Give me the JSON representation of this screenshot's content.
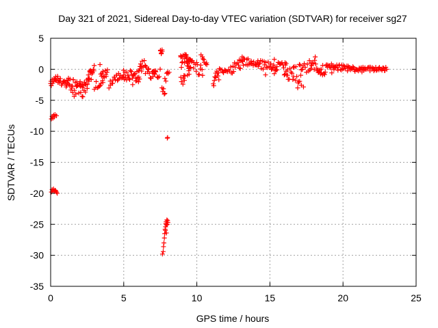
{
  "chart_data": {
    "type": "scatter",
    "title": "Day 321 of 2021, Sidereal Day-to-day VTEC variation (SDTVAR) for receiver sg27",
    "xlabel": "GPS time / hours",
    "ylabel": "SDTVAR / TECUs",
    "xlim": [
      0,
      25
    ],
    "ylim": [
      -35,
      5
    ],
    "x_ticks": [
      0,
      5,
      10,
      15,
      20,
      25
    ],
    "y_ticks": [
      5,
      0,
      -5,
      -10,
      -15,
      -20,
      -25,
      -30,
      -35
    ],
    "grid": true,
    "marker": "plus",
    "marker_color": "#ff0000",
    "segments": [
      {
        "x0": 0.0,
        "x1": 0.5,
        "y0": -2.2,
        "y1": -1.5,
        "jitter": 0.5,
        "n": 12
      },
      {
        "x0": 0.5,
        "x1": 1.0,
        "y0": -2.0,
        "y1": -2.5,
        "jitter": 0.7,
        "n": 12
      },
      {
        "x0": 1.0,
        "x1": 1.5,
        "y0": -2.0,
        "y1": -2.8,
        "jitter": 1.0,
        "n": 14
      },
      {
        "x0": 1.5,
        "x1": 2.2,
        "y0": -3.0,
        "y1": -3.5,
        "jitter": 1.4,
        "n": 22
      },
      {
        "x0": 2.2,
        "x1": 2.8,
        "y0": -3.5,
        "y1": -0.5,
        "jitter": 1.2,
        "n": 18
      },
      {
        "x0": 2.6,
        "x1": 3.0,
        "y0": -1.0,
        "y1": 0.3,
        "jitter": 0.6,
        "n": 10
      },
      {
        "x0": 3.0,
        "x1": 3.6,
        "y0": -2.8,
        "y1": -1.8,
        "jitter": 0.6,
        "n": 10
      },
      {
        "x0": 3.4,
        "x1": 3.9,
        "y0": -0.2,
        "y1": -0.5,
        "jitter": 1.0,
        "n": 12
      },
      {
        "x0": 4.0,
        "x1": 4.5,
        "y0": -2.5,
        "y1": -1.5,
        "jitter": 0.6,
        "n": 10
      },
      {
        "x0": 4.5,
        "x1": 5.0,
        "y0": -1.2,
        "y1": -0.5,
        "jitter": 0.8,
        "n": 10
      },
      {
        "x0": 5.0,
        "x1": 5.6,
        "y0": -0.8,
        "y1": -1.2,
        "jitter": 1.0,
        "n": 14
      },
      {
        "x0": 5.6,
        "x1": 6.2,
        "y0": -1.8,
        "y1": -0.5,
        "jitter": 1.2,
        "n": 16
      },
      {
        "x0": 6.0,
        "x1": 6.5,
        "y0": 0.3,
        "y1": 1.0,
        "jitter": 0.7,
        "n": 10
      },
      {
        "x0": 6.5,
        "x1": 7.2,
        "y0": -0.3,
        "y1": -1.0,
        "jitter": 0.8,
        "n": 14
      },
      {
        "x0": 7.0,
        "x1": 7.5,
        "y0": -1.2,
        "y1": -0.5,
        "jitter": 0.7,
        "n": 8
      },
      {
        "x0": 7.5,
        "x1": 7.65,
        "y0": 3.3,
        "y1": 2.5,
        "jitter": 0.5,
        "n": 6
      },
      {
        "x0": 7.6,
        "x1": 7.8,
        "y0": -3.2,
        "y1": -4.0,
        "jitter": 0.5,
        "n": 5
      },
      {
        "x0": 7.8,
        "x1": 8.1,
        "y0": -2.0,
        "y1": -0.3,
        "jitter": 0.7,
        "n": 6
      },
      {
        "x0": 8.9,
        "x1": 9.6,
        "y0": 0.5,
        "y1": 0.3,
        "jitter": 2.0,
        "n": 30
      },
      {
        "x0": 9.3,
        "x1": 10.4,
        "y0": 0.8,
        "y1": -0.3,
        "jitter": 1.1,
        "n": 20
      },
      {
        "x0": 10.3,
        "x1": 10.7,
        "y0": 2.2,
        "y1": 0.8,
        "jitter": 0.5,
        "n": 8
      },
      {
        "x0": 11.1,
        "x1": 11.5,
        "y0": -1.8,
        "y1": -1.3,
        "jitter": 1.2,
        "n": 10
      },
      {
        "x0": 11.5,
        "x1": 12.5,
        "y0": -0.2,
        "y1": 0.0,
        "jitter": 0.6,
        "n": 16
      },
      {
        "x0": 12.5,
        "x1": 13.0,
        "y0": 0.8,
        "y1": 0.5,
        "jitter": 0.5,
        "n": 8
      },
      {
        "x0": 13.0,
        "x1": 14.2,
        "y0": 1.3,
        "y1": 0.8,
        "jitter": 0.6,
        "n": 22
      },
      {
        "x0": 14.2,
        "x1": 15.5,
        "y0": 0.8,
        "y1": 0.3,
        "jitter": 0.7,
        "n": 24
      },
      {
        "x0": 15.5,
        "x1": 16.2,
        "y0": 1.0,
        "y1": 0.3,
        "jitter": 0.6,
        "n": 12
      },
      {
        "x0": 16.0,
        "x1": 16.6,
        "y0": -0.5,
        "y1": -1.2,
        "jitter": 1.2,
        "n": 12
      },
      {
        "x0": 16.6,
        "x1": 17.3,
        "y0": -0.6,
        "y1": -1.5,
        "jitter": 1.5,
        "n": 12
      },
      {
        "x0": 17.0,
        "x1": 17.8,
        "y0": 0.5,
        "y1": 0.2,
        "jitter": 0.8,
        "n": 12
      },
      {
        "x0": 17.8,
        "x1": 18.3,
        "y0": 1.0,
        "y1": 0.3,
        "jitter": 0.9,
        "n": 10
      },
      {
        "x0": 18.3,
        "x1": 19.3,
        "y0": -0.3,
        "y1": 0.2,
        "jitter": 0.8,
        "n": 22
      },
      {
        "x0": 19.3,
        "x1": 20.3,
        "y0": 0.3,
        "y1": 0.2,
        "jitter": 0.5,
        "n": 20
      },
      {
        "x0": 20.3,
        "x1": 21.3,
        "y0": 0.2,
        "y1": -0.1,
        "jitter": 0.4,
        "n": 20
      },
      {
        "x0": 21.3,
        "x1": 23.0,
        "y0": 0.0,
        "y1": 0.1,
        "jitter": 0.35,
        "n": 32
      }
    ],
    "points": [
      [
        0.0,
        -2.3
      ],
      [
        0.05,
        -8.0
      ],
      [
        0.1,
        -7.6
      ],
      [
        0.15,
        -7.9
      ],
      [
        0.2,
        -7.4
      ],
      [
        0.25,
        -7.7
      ],
      [
        0.3,
        -7.3
      ],
      [
        0.4,
        -7.5
      ],
      [
        0.05,
        -19.8
      ],
      [
        0.1,
        -19.4
      ],
      [
        0.15,
        -19.6
      ],
      [
        0.2,
        -19.3
      ],
      [
        0.25,
        -19.7
      ],
      [
        0.3,
        -19.5
      ],
      [
        0.35,
        -19.6
      ],
      [
        0.4,
        -19.8
      ],
      [
        0.45,
        -20.0
      ],
      [
        7.65,
        -29.8
      ],
      [
        7.7,
        -29.4
      ],
      [
        7.72,
        -28.6
      ],
      [
        7.75,
        -28.0
      ],
      [
        7.78,
        -27.2
      ],
      [
        7.8,
        -26.5
      ],
      [
        7.83,
        -25.8
      ],
      [
        7.86,
        -25.4
      ],
      [
        7.88,
        -24.9
      ],
      [
        7.9,
        -24.6
      ],
      [
        7.93,
        -25.1
      ],
      [
        7.95,
        -24.3
      ],
      [
        7.98,
        -25.0
      ],
      [
        8.0,
        -24.4
      ],
      [
        8.02,
        -24.7
      ],
      [
        7.85,
        -26.0
      ],
      [
        7.92,
        -26.4
      ],
      [
        8.0,
        -11.0
      ],
      [
        7.98,
        -11.1
      ],
      [
        8.95,
        -2.0
      ],
      [
        9.05,
        -2.4
      ],
      [
        9.15,
        -1.8
      ],
      [
        8.9,
        2.0
      ],
      [
        9.3,
        1.8
      ],
      [
        9.5,
        1.6
      ],
      [
        14.7,
        -0.9
      ],
      [
        15.3,
        -0.7
      ],
      [
        12.9,
        1.5
      ],
      [
        13.1,
        2.0
      ],
      [
        13.2,
        1.8
      ],
      [
        15.3,
        1.6
      ],
      [
        16.9,
        -3.0
      ],
      [
        18.1,
        2.0
      ],
      [
        17.7,
        1.4
      ]
    ]
  }
}
